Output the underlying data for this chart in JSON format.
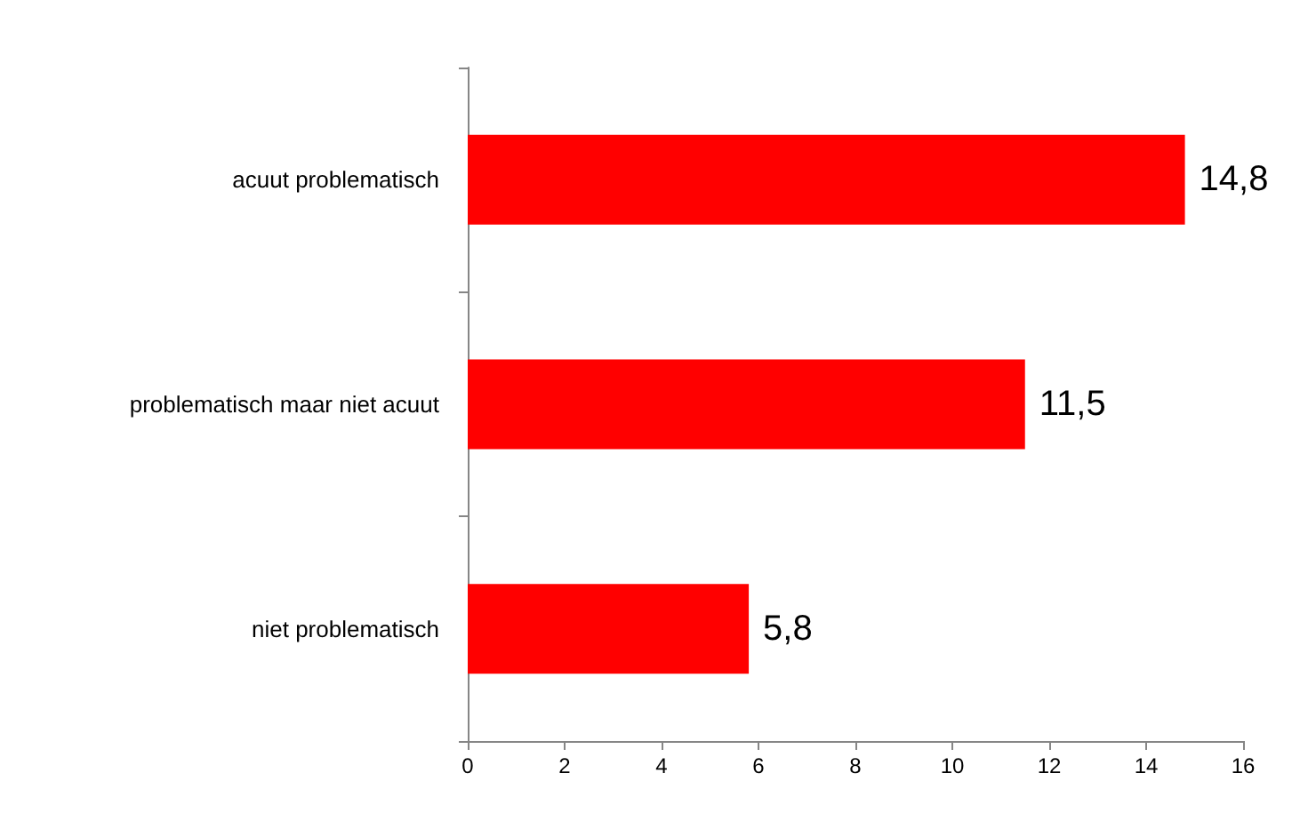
{
  "chart_data": {
    "type": "bar",
    "orientation": "horizontal",
    "categories": [
      "acuut problematisch",
      "problematisch maar niet acuut",
      "niet problematisch"
    ],
    "values": [
      14.8,
      11.5,
      5.8
    ],
    "color": "#ff0000",
    "value_labels": [
      "14,8",
      "11,5",
      "5,8"
    ],
    "xlim": [
      0,
      16
    ],
    "xticks": [
      0,
      2,
      4,
      6,
      8,
      10,
      12,
      14,
      16
    ],
    "grid": false
  }
}
